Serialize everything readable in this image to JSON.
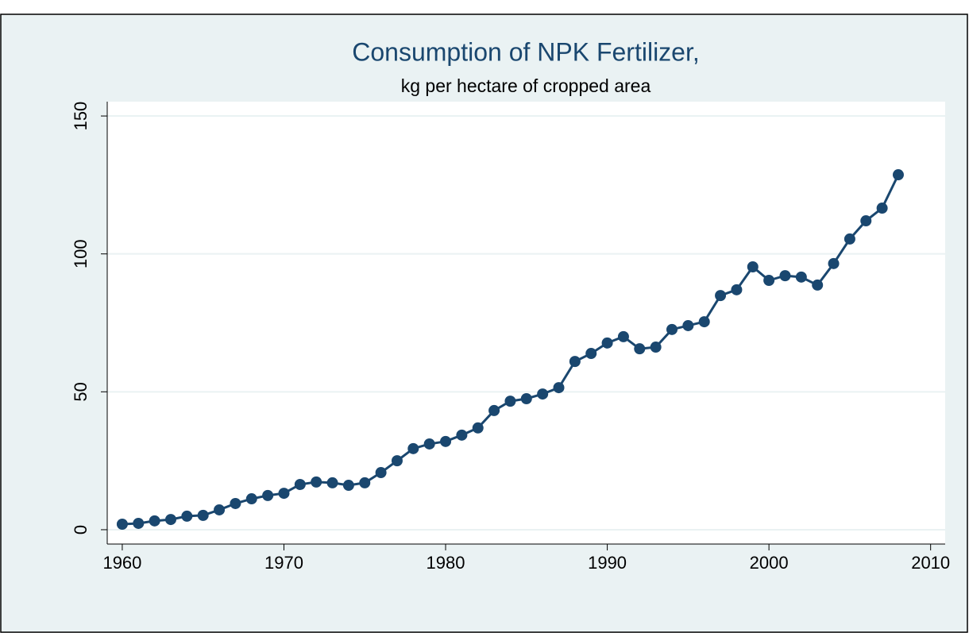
{
  "chart_data": {
    "type": "line",
    "title": "Consumption of NPK Fertilizer,",
    "subtitle": "kg per hectare of cropped area",
    "x": [
      1960,
      1961,
      1962,
      1963,
      1964,
      1965,
      1966,
      1967,
      1968,
      1969,
      1970,
      1971,
      1972,
      1973,
      1974,
      1975,
      1976,
      1977,
      1978,
      1979,
      1980,
      1981,
      1982,
      1983,
      1984,
      1985,
      1986,
      1987,
      1988,
      1989,
      1990,
      1991,
      1992,
      1993,
      1994,
      1995,
      1996,
      1997,
      1998,
      1999,
      2000,
      2001,
      2002,
      2003,
      2004,
      2005,
      2006,
      2007,
      2008
    ],
    "series": [
      {
        "color": "#1a476f",
        "values": [
          2.0,
          2.3,
          3.2,
          3.7,
          4.9,
          5.2,
          7.2,
          9.5,
          11.2,
          12.4,
          13.2,
          16.4,
          17.3,
          17.0,
          16.1,
          17.0,
          20.7,
          25.0,
          29.4,
          31.1,
          32.0,
          34.3,
          36.9,
          43.2,
          46.6,
          47.5,
          49.2,
          51.5,
          61.0,
          63.9,
          67.7,
          70.0,
          65.6,
          66.2,
          72.6,
          74.0,
          75.4,
          84.9,
          87.0,
          95.3,
          90.4,
          92.1,
          91.6,
          88.7,
          96.5,
          105.4,
          112.0,
          116.6,
          128.7
        ]
      }
    ],
    "xlim": [
      1959.07,
      2010.9
    ],
    "xticks": [
      1960,
      1970,
      1980,
      1990,
      2000,
      2010
    ],
    "ylim": [
      -5.2,
      155.2
    ],
    "yticks": [
      0,
      50,
      100,
      150
    ],
    "grid": true
  }
}
